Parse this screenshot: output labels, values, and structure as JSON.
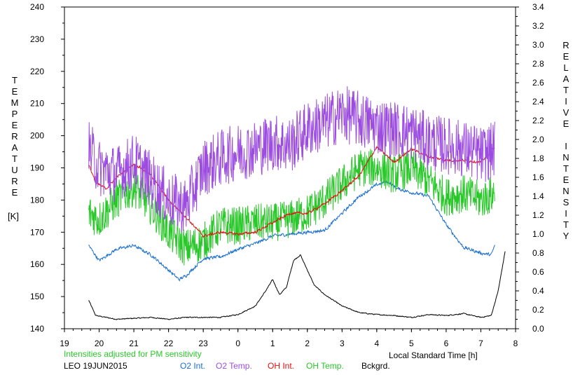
{
  "chart_data": {
    "type": "line",
    "left_axis": {
      "label_letters": [
        "T",
        "E",
        "M",
        "P",
        "E",
        "R",
        "A",
        "T",
        "U",
        "R",
        "E"
      ],
      "unit": "[K]",
      "range": [
        140,
        240
      ],
      "ticks": [
        140,
        150,
        160,
        170,
        180,
        190,
        200,
        210,
        220,
        230,
        240
      ]
    },
    "right_axis": {
      "label_letters": [
        "R",
        "E",
        "L",
        "A",
        "T",
        "I",
        "V",
        "E",
        "",
        "I",
        "N",
        "T",
        "E",
        "N",
        "S",
        "I",
        "T",
        "Y"
      ],
      "range": [
        0.0,
        3.4
      ],
      "ticks": [
        "0.0",
        "0.2",
        "0.4",
        "0.6",
        "0.8",
        "1.0",
        "1.2",
        "1.4",
        "1.6",
        "1.8",
        "2.0",
        "2.2",
        "2.4",
        "2.6",
        "2.8",
        "3.0",
        "3.2",
        "3.4"
      ]
    },
    "x_axis": {
      "label": "Local Standard Time [h]",
      "range": [
        19,
        32
      ],
      "tick_labels": [
        "19",
        "20",
        "21",
        "22",
        "23",
        "0",
        "1",
        "2",
        "3",
        "4",
        "5",
        "6",
        "7",
        "8"
      ]
    },
    "note": "Intensities adjusted for PM sensitivity",
    "station": "LEO 19JUN2015",
    "series": [
      {
        "name": "O2 Int.",
        "color": "#1a6fd0",
        "axis": "right",
        "x": [
          19.7,
          20.0,
          20.5,
          21.0,
          21.5,
          22.0,
          22.3,
          22.5,
          23.0,
          23.5,
          24.0,
          24.5,
          25.0,
          25.5,
          26.0,
          26.5,
          27.0,
          27.5,
          28.0,
          28.3,
          28.6,
          29.0,
          29.5,
          30.0,
          30.5,
          31.0,
          31.3,
          31.4
        ],
        "values": [
          0.88,
          0.72,
          0.84,
          0.88,
          0.78,
          0.62,
          0.52,
          0.56,
          0.74,
          0.76,
          0.84,
          0.9,
          0.98,
          1.0,
          1.02,
          1.04,
          1.22,
          1.4,
          1.52,
          1.56,
          1.48,
          1.44,
          1.4,
          1.1,
          0.86,
          0.8,
          0.78,
          0.88
        ]
      },
      {
        "name": "O2 Temp.",
        "color": "#9c4de0",
        "axis": "left",
        "x": [
          19.7,
          20.0,
          20.5,
          21.0,
          21.5,
          22.0,
          22.5,
          23.0,
          23.5,
          24.0,
          24.5,
          25.0,
          25.5,
          26.0,
          26.5,
          27.0,
          27.5,
          28.0,
          28.5,
          29.0,
          29.5,
          30.0,
          30.5,
          31.0,
          31.3,
          31.4
        ],
        "values": [
          196,
          190,
          188,
          192,
          186,
          180,
          178,
          190,
          193,
          195,
          196,
          198,
          197,
          202,
          204,
          207,
          205,
          203,
          202,
          201,
          198,
          197,
          196,
          194,
          195,
          196
        ]
      },
      {
        "name": "OH Int.",
        "color": "#e01010",
        "axis": "right",
        "x": [
          19.7,
          19.9,
          20.2,
          20.5,
          21.0,
          21.2,
          21.5,
          22.0,
          22.5,
          23.0,
          23.5,
          24.0,
          24.5,
          25.0,
          25.5,
          26.0,
          26.5,
          27.0,
          27.5,
          28.0,
          28.5,
          29.0,
          29.5,
          30.0,
          30.5,
          31.0,
          31.4
        ],
        "values": [
          1.74,
          1.54,
          1.48,
          1.6,
          1.74,
          1.7,
          1.62,
          1.36,
          1.18,
          0.98,
          1.02,
          1.0,
          1.02,
          1.12,
          1.22,
          1.22,
          1.32,
          1.46,
          1.62,
          1.92,
          1.76,
          1.9,
          1.82,
          1.78,
          1.78,
          1.76,
          1.92
        ]
      },
      {
        "name": "OH Temp.",
        "color": "#28c828",
        "axis": "left",
        "x": [
          19.7,
          20.0,
          20.5,
          21.0,
          21.5,
          22.0,
          22.5,
          23.0,
          23.5,
          24.0,
          24.5,
          25.0,
          25.5,
          26.0,
          26.5,
          27.0,
          27.5,
          28.0,
          28.5,
          29.0,
          29.5,
          30.0,
          30.5,
          31.0,
          31.4
        ],
        "values": [
          176,
          174,
          180,
          184,
          178,
          170,
          165,
          167,
          172,
          172,
          173,
          173,
          174,
          176,
          180,
          185,
          190,
          190,
          188,
          190,
          186,
          181,
          182,
          180,
          182
        ]
      },
      {
        "name": "Bckgrd.",
        "color": "#000000",
        "axis": "right",
        "x": [
          19.7,
          19.9,
          20.5,
          21.0,
          21.5,
          22.0,
          22.5,
          23.0,
          23.5,
          24.0,
          24.5,
          24.8,
          25.0,
          25.2,
          25.4,
          25.6,
          25.8,
          26.0,
          26.2,
          26.5,
          27.0,
          27.5,
          28.0,
          28.5,
          29.0,
          29.5,
          30.0,
          30.5,
          31.0,
          31.3,
          31.5,
          31.7
        ],
        "values": [
          0.3,
          0.14,
          0.1,
          0.11,
          0.12,
          0.1,
          0.12,
          0.12,
          0.12,
          0.15,
          0.24,
          0.4,
          0.52,
          0.36,
          0.44,
          0.72,
          0.78,
          0.62,
          0.46,
          0.36,
          0.24,
          0.17,
          0.15,
          0.14,
          0.12,
          0.15,
          0.14,
          0.16,
          0.12,
          0.14,
          0.4,
          0.82
        ]
      }
    ]
  }
}
